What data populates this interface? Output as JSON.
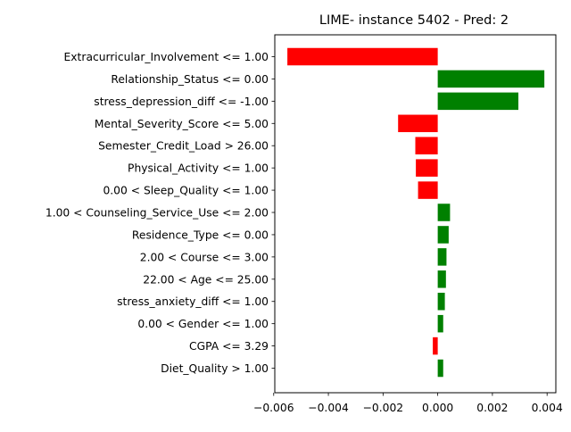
{
  "chart_data": {
    "type": "bar",
    "orientation": "horizontal",
    "title": "LIME- instance 5402 - Pred: 2",
    "xlabel": "",
    "ylabel": "",
    "xlim": [
      -0.00596,
      0.00432
    ],
    "xticks": [
      -0.006,
      -0.004,
      -0.002,
      0.0,
      0.002,
      0.004
    ],
    "xtick_labels": [
      "−0.006",
      "−0.004",
      "−0.002",
      "0.000",
      "0.002",
      "0.004"
    ],
    "grid": false,
    "categories": [
      "Extracurricular_Involvement <= 1.00",
      "Relationship_Status <= 0.00",
      "stress_depression_diff <= -1.00",
      "Mental_Severity_Score <= 5.00",
      "Semester_Credit_Load > 26.00",
      "Physical_Activity <= 1.00",
      "0.00 < Sleep_Quality <= 1.00",
      "1.00 < Counseling_Service_Use <= 2.00",
      "Residence_Type <= 0.00",
      "2.00 < Course <= 3.00",
      "22.00 < Age <= 25.00",
      "stress_anxiety_diff <= 1.00",
      "0.00 < Gender <= 1.00",
      "CGPA <= 3.29",
      "Diet_Quality > 1.00"
    ],
    "values": [
      -0.0055,
      0.0039,
      0.00295,
      -0.00145,
      -0.00082,
      -0.0008,
      -0.00072,
      0.00045,
      0.0004,
      0.00032,
      0.0003,
      0.00026,
      0.0002,
      -0.00018,
      0.0002
    ],
    "colors": {
      "positive": "#008000",
      "negative": "#ff0000",
      "axis": "#000000"
    }
  }
}
